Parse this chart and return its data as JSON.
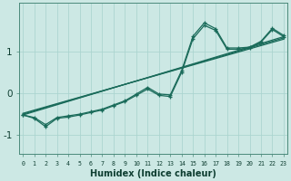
{
  "xlabel": "Humidex (Indice chaleur)",
  "bg_color": "#cce8e4",
  "line_color": "#1a6b5a",
  "grid_color": "#aad4cf",
  "x_min": -0.3,
  "x_max": 23.3,
  "y_min": -1.45,
  "y_max": 2.15,
  "yticks": [
    -1,
    0,
    1
  ],
  "xticks": [
    0,
    1,
    2,
    3,
    4,
    5,
    6,
    7,
    8,
    9,
    10,
    11,
    12,
    13,
    14,
    15,
    16,
    17,
    18,
    19,
    20,
    21,
    22,
    23
  ],
  "reg1": {
    "x": [
      0,
      23
    ],
    "y": [
      -0.52,
      1.35
    ]
  },
  "reg2": {
    "x": [
      0,
      23
    ],
    "y": [
      -0.5,
      1.32
    ]
  },
  "reg3": {
    "x": [
      0,
      23
    ],
    "y": [
      -0.48,
      1.29
    ]
  },
  "jagged1_x": [
    0,
    1,
    2,
    3,
    4,
    5,
    6,
    7,
    8,
    9,
    10,
    11,
    12,
    13,
    14,
    15,
    16,
    17,
    18,
    19,
    20,
    21,
    22,
    23
  ],
  "jagged1_y": [
    -0.52,
    -0.6,
    -0.8,
    -0.6,
    -0.57,
    -0.52,
    -0.46,
    -0.4,
    -0.3,
    -0.2,
    -0.05,
    0.1,
    -0.05,
    -0.08,
    0.5,
    1.3,
    1.62,
    1.5,
    1.05,
    1.05,
    1.08,
    1.22,
    1.52,
    1.35
  ],
  "jagged2_x": [
    0,
    1,
    2,
    3,
    4,
    5,
    6,
    7,
    8,
    9,
    10,
    11,
    12,
    13,
    14,
    15,
    16,
    17,
    18,
    19,
    20,
    21,
    22,
    23
  ],
  "jagged2_y": [
    -0.52,
    -0.58,
    -0.75,
    -0.58,
    -0.54,
    -0.5,
    -0.44,
    -0.38,
    -0.28,
    -0.18,
    -0.02,
    0.14,
    -0.02,
    -0.04,
    0.54,
    1.36,
    1.68,
    1.54,
    1.08,
    1.08,
    1.1,
    1.24,
    1.55,
    1.38
  ]
}
